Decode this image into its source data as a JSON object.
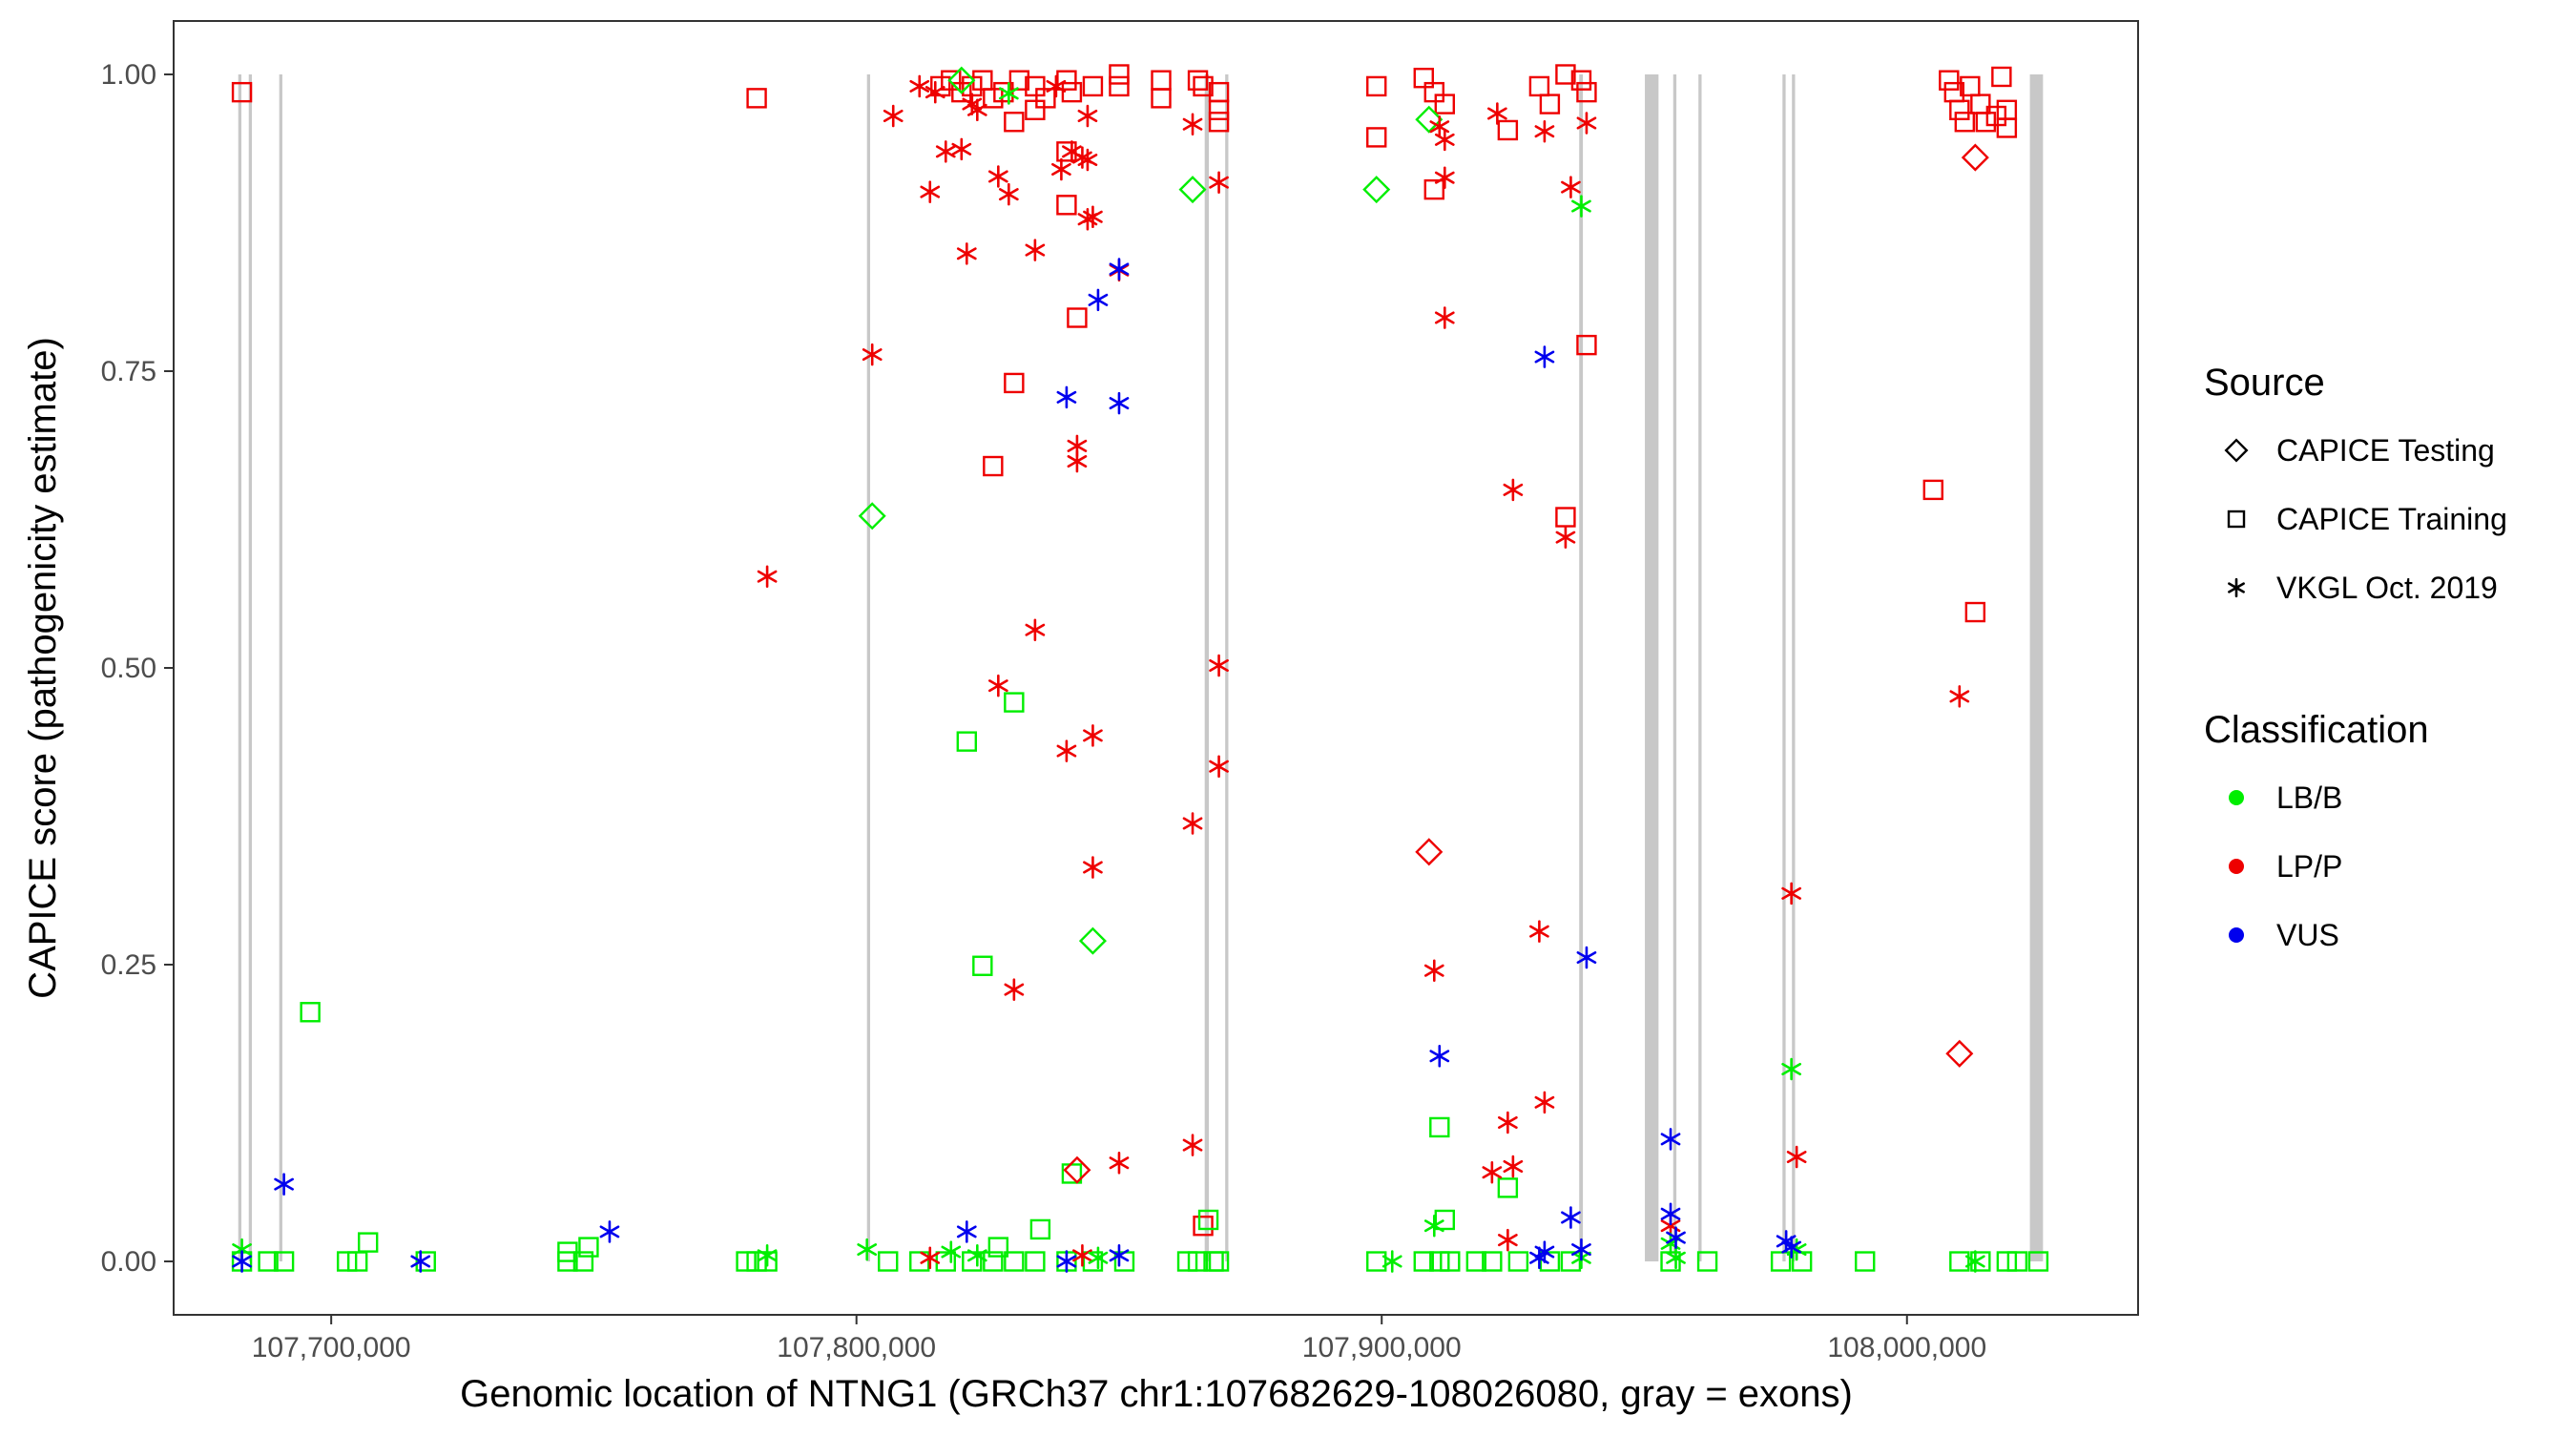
{
  "chart_data": {
    "type": "scatter",
    "xlabel": "Genomic location of NTNG1 (GRCh37 chr1:107682629-108026080, gray = exons)",
    "ylabel": "CAPICE score (pathogenicity estimate)",
    "xlim": [
      107670000,
      108044000
    ],
    "ylim": [
      -0.045,
      1.045
    ],
    "x_ticks": [
      107700000,
      107800000,
      107900000,
      108000000
    ],
    "x_tick_labels": [
      "107,700,000",
      "107,800,000",
      "107,900,000",
      "108,000,000"
    ],
    "y_ticks": [
      0,
      0.25,
      0.5,
      0.75,
      1
    ],
    "y_tick_labels": [
      "0.00",
      "0.25",
      "0.50",
      "0.75",
      "1.00"
    ],
    "grid": false,
    "exons": [
      [
        107682300,
        107682900
      ],
      [
        107684300,
        107684900
      ],
      [
        107690100,
        107690700
      ],
      [
        107802000,
        107802600
      ],
      [
        107866300,
        107867100
      ],
      [
        107870200,
        107870800
      ],
      [
        107937600,
        107938300
      ],
      [
        107950100,
        107952700
      ],
      [
        107955500,
        107956100
      ],
      [
        107960300,
        107960900
      ],
      [
        107976300,
        107976900
      ],
      [
        107978100,
        107978700
      ],
      [
        108023400,
        108025900
      ]
    ],
    "legend": {
      "position": "right",
      "source_title": "Source",
      "source_items": [
        {
          "label": "CAPICE Testing",
          "shape": "diamond"
        },
        {
          "label": "CAPICE Training",
          "shape": "square"
        },
        {
          "label": "VKGL Oct. 2019",
          "shape": "asterisk"
        }
      ],
      "class_title": "Classification",
      "class_items": [
        {
          "label": "LB/B",
          "color": "#00ee00"
        },
        {
          "label": "LP/P",
          "color": "#ee0000"
        },
        {
          "label": "VUS",
          "color": "#0000ee"
        }
      ]
    },
    "colors": {
      "LB/B": "#00ee00",
      "LP/P": "#ee0000",
      "VUS": "#0000ee"
    },
    "series": [
      {
        "source": "CAPICE Training",
        "class": "LP/P",
        "points": [
          [
            107683000,
            0.985
          ],
          [
            107781000,
            0.98
          ],
          [
            107816000,
            0.99
          ],
          [
            107818000,
            0.995
          ],
          [
            107820000,
            0.985
          ],
          [
            107822000,
            0.99
          ],
          [
            107824000,
            0.995
          ],
          [
            107826000,
            0.98
          ],
          [
            107828000,
            0.985
          ],
          [
            107830000,
            0.96
          ],
          [
            107831000,
            0.995
          ],
          [
            107834000,
            0.99
          ],
          [
            107834000,
            0.97
          ],
          [
            107836000,
            0.98
          ],
          [
            107840000,
            0.995
          ],
          [
            107841000,
            0.985
          ],
          [
            107845000,
            0.99
          ],
          [
            107850000,
            0.99
          ],
          [
            107850000,
            1.0
          ],
          [
            107858000,
            0.995
          ],
          [
            107858000,
            0.98
          ],
          [
            107865000,
            0.995
          ],
          [
            107866000,
            0.99
          ],
          [
            107869000,
            0.985
          ],
          [
            107869000,
            0.97
          ],
          [
            107869000,
            0.96
          ],
          [
            107840000,
            0.935
          ],
          [
            107840000,
            0.89
          ],
          [
            107842000,
            0.795
          ],
          [
            107830000,
            0.74
          ],
          [
            107826000,
            0.67
          ],
          [
            107899000,
            0.99
          ],
          [
            107899000,
            0.947
          ],
          [
            107908000,
            0.997
          ],
          [
            107910000,
            0.985
          ],
          [
            107912000,
            0.975
          ],
          [
            107910000,
            0.903
          ],
          [
            107924000,
            0.953
          ],
          [
            107930000,
            0.99
          ],
          [
            107932000,
            0.975
          ],
          [
            107935000,
            1.0
          ],
          [
            107938000,
            0.995
          ],
          [
            107939000,
            0.985
          ],
          [
            107939000,
            0.772
          ],
          [
            107935000,
            0.627
          ],
          [
            108005000,
            0.65
          ],
          [
            108008000,
            0.995
          ],
          [
            108009000,
            0.985
          ],
          [
            108010000,
            0.97
          ],
          [
            108011000,
            0.96
          ],
          [
            108012000,
            0.99
          ],
          [
            108014000,
            0.975
          ],
          [
            108015000,
            0.96
          ],
          [
            108017000,
            0.965
          ],
          [
            108018000,
            0.998
          ],
          [
            108019000,
            0.97
          ],
          [
            108019000,
            0.955
          ],
          [
            108013000,
            0.547
          ],
          [
            107866000,
            0.03
          ]
        ]
      },
      {
        "source": "CAPICE Training",
        "class": "LB/B",
        "points": [
          [
            107696000,
            0.21
          ],
          [
            107683000,
            0.0
          ],
          [
            107688000,
            0.0
          ],
          [
            107691000,
            0.0
          ],
          [
            107703000,
            0.0
          ],
          [
            107705000,
            0.0
          ],
          [
            107707000,
            0.016
          ],
          [
            107718000,
            0.0
          ],
          [
            107745000,
            0.0
          ],
          [
            107745000,
            0.008
          ],
          [
            107748000,
            0.0
          ],
          [
            107749000,
            0.012
          ],
          [
            107779000,
            0.0
          ],
          [
            107781000,
            0.0
          ],
          [
            107783000,
            0.0
          ],
          [
            107806000,
            0.0
          ],
          [
            107812000,
            0.0
          ],
          [
            107817000,
            0.0
          ],
          [
            107822000,
            0.0
          ],
          [
            107826000,
            0.0
          ],
          [
            107827000,
            0.012
          ],
          [
            107830000,
            0.0
          ],
          [
            107834000,
            0.0
          ],
          [
            107835000,
            0.027
          ],
          [
            107840000,
            0.0
          ],
          [
            107845000,
            0.0
          ],
          [
            107851000,
            0.0
          ],
          [
            107863000,
            0.0
          ],
          [
            107865000,
            0.0
          ],
          [
            107868000,
            0.0
          ],
          [
            107869000,
            0.0
          ],
          [
            107867000,
            0.035
          ],
          [
            107821000,
            0.438
          ],
          [
            107830000,
            0.471
          ],
          [
            107824000,
            0.249
          ],
          [
            107899000,
            0.0
          ],
          [
            107908000,
            0.0
          ],
          [
            107911000,
            0.0
          ],
          [
            107913000,
            0.0
          ],
          [
            107918000,
            0.0
          ],
          [
            107921000,
            0.0
          ],
          [
            107926000,
            0.0
          ],
          [
            107932000,
            0.0
          ],
          [
            107936000,
            0.0
          ],
          [
            107911000,
            0.113
          ],
          [
            107912000,
            0.035
          ],
          [
            107924000,
            0.062
          ],
          [
            107955000,
            0.0
          ],
          [
            107962000,
            0.0
          ],
          [
            107976000,
            0.0
          ],
          [
            107980000,
            0.0
          ],
          [
            107992000,
            0.0
          ],
          [
            108010000,
            0.0
          ],
          [
            108014000,
            0.0
          ],
          [
            108019000,
            0.0
          ],
          [
            108021000,
            0.0
          ],
          [
            108025000,
            0.0
          ],
          [
            107841000,
            0.074
          ]
        ]
      },
      {
        "source": "CAPICE Testing",
        "class": "LP/P",
        "points": [
          [
            108013000,
            0.93
          ],
          [
            107909000,
            0.345
          ],
          [
            108010000,
            0.175
          ],
          [
            107842000,
            0.077
          ]
        ]
      },
      {
        "source": "CAPICE Testing",
        "class": "LB/B",
        "points": [
          [
            107864000,
            0.903
          ],
          [
            107899000,
            0.903
          ],
          [
            107909000,
            0.962
          ],
          [
            107803000,
            0.628
          ],
          [
            107845000,
            0.27
          ],
          [
            107820000,
            0.995
          ]
        ]
      },
      {
        "source": "VKGL Oct. 2019",
        "class": "LP/P",
        "points": [
          [
            107807000,
            0.965
          ],
          [
            107812000,
            0.99
          ],
          [
            107815000,
            0.985
          ],
          [
            107817000,
            0.935
          ],
          [
            107820000,
            0.937
          ],
          [
            107822000,
            0.975
          ],
          [
            107823000,
            0.97
          ],
          [
            107827000,
            0.914
          ],
          [
            107829000,
            0.899
          ],
          [
            107814000,
            0.901
          ],
          [
            107821000,
            0.849
          ],
          [
            107834000,
            0.852
          ],
          [
            107841000,
            0.935
          ],
          [
            107843000,
            0.93
          ],
          [
            107844000,
            0.928
          ],
          [
            107839000,
            0.92
          ],
          [
            107845000,
            0.88
          ],
          [
            107844000,
            0.878
          ],
          [
            107844000,
            0.965
          ],
          [
            107850000,
            0.835
          ],
          [
            107864000,
            0.958
          ],
          [
            107869000,
            0.909
          ],
          [
            107838000,
            0.99
          ],
          [
            107803000,
            0.764
          ],
          [
            107842000,
            0.687
          ],
          [
            107842000,
            0.674
          ],
          [
            107783000,
            0.577
          ],
          [
            107834000,
            0.532
          ],
          [
            107827000,
            0.485
          ],
          [
            107845000,
            0.443
          ],
          [
            107840000,
            0.43
          ],
          [
            107869000,
            0.502
          ],
          [
            107869000,
            0.417
          ],
          [
            107864000,
            0.369
          ],
          [
            107845000,
            0.332
          ],
          [
            107830000,
            0.229
          ],
          [
            107864000,
            0.098
          ],
          [
            107850000,
            0.083
          ],
          [
            107843000,
            0.005
          ],
          [
            107814000,
            0.003
          ],
          [
            107911000,
            0.956
          ],
          [
            107912000,
            0.945
          ],
          [
            107912000,
            0.913
          ],
          [
            107922000,
            0.967
          ],
          [
            107931000,
            0.952
          ],
          [
            107936000,
            0.905
          ],
          [
            107939000,
            0.959
          ],
          [
            107912000,
            0.795
          ],
          [
            107925000,
            0.65
          ],
          [
            107935000,
            0.61
          ],
          [
            107910000,
            0.245
          ],
          [
            107930000,
            0.278
          ],
          [
            107931000,
            0.134
          ],
          [
            107924000,
            0.117
          ],
          [
            107925000,
            0.08
          ],
          [
            107921000,
            0.075
          ],
          [
            107924000,
            0.018
          ],
          [
            107955000,
            0.03
          ],
          [
            107978000,
            0.31
          ],
          [
            107979000,
            0.088
          ],
          [
            108010000,
            0.476
          ]
        ]
      },
      {
        "source": "VKGL Oct. 2019",
        "class": "LB/B",
        "points": [
          [
            107683000,
            0.01
          ],
          [
            107783000,
            0.005
          ],
          [
            107802000,
            0.01
          ],
          [
            107818000,
            0.008
          ],
          [
            107823000,
            0.005
          ],
          [
            107829000,
            0.984
          ],
          [
            107846000,
            0.003
          ],
          [
            107910000,
            0.03
          ],
          [
            107938000,
            0.889
          ],
          [
            107938000,
            0.003
          ],
          [
            107955000,
            0.015
          ],
          [
            107956000,
            0.003
          ],
          [
            107978000,
            0.162
          ],
          [
            107979000,
            0.01
          ],
          [
            108013000,
            0.0
          ],
          [
            107902000,
            0.0
          ]
        ]
      },
      {
        "source": "VKGL Oct. 2019",
        "class": "VUS",
        "points": [
          [
            107683000,
            0.0
          ],
          [
            107691000,
            0.065
          ],
          [
            107717000,
            0.0
          ],
          [
            107753000,
            0.025
          ],
          [
            107846000,
            0.81
          ],
          [
            107850000,
            0.836
          ],
          [
            107840000,
            0.728
          ],
          [
            107850000,
            0.723
          ],
          [
            107821000,
            0.025
          ],
          [
            107840000,
            0.0
          ],
          [
            107850000,
            0.005
          ],
          [
            107931000,
            0.762
          ],
          [
            107939000,
            0.256
          ],
          [
            107911000,
            0.173
          ],
          [
            107936000,
            0.037
          ],
          [
            107938000,
            0.01
          ],
          [
            107931000,
            0.008
          ],
          [
            107930000,
            0.003
          ],
          [
            107955000,
            0.103
          ],
          [
            107955000,
            0.04
          ],
          [
            107956000,
            0.02
          ],
          [
            107977000,
            0.017
          ],
          [
            107978000,
            0.012
          ]
        ]
      }
    ]
  }
}
